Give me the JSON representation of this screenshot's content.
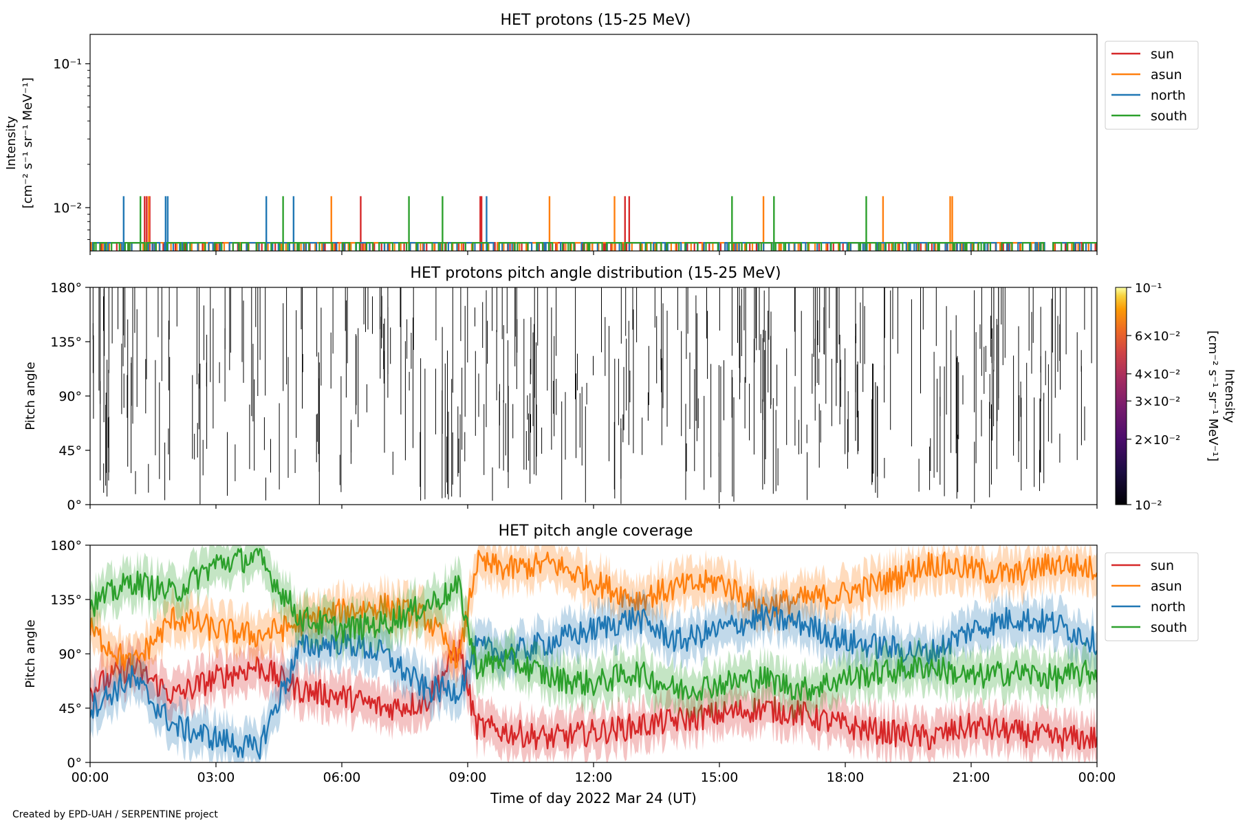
{
  "footer": "Created by EPD-UAH / SERPENTINE project",
  "chart_data": [
    {
      "id": "intensity",
      "type": "line",
      "title": "HET protons (15-25 MeV)",
      "ylabel_line1": "Intensity",
      "ylabel_line2": "[cm⁻² s⁻¹ sr⁻¹ MeV⁻¹]",
      "yscale": "log",
      "ylim": [
        0.005,
        0.16
      ],
      "yticks": [
        {
          "value": 0.1,
          "label": "10⁻¹"
        },
        {
          "value": 0.01,
          "label": "10⁻²"
        }
      ],
      "xlim_hours": [
        0,
        24
      ],
      "legend": "top-right outside",
      "series": [
        {
          "name": "sun",
          "color": "#d62728",
          "baseline": 0.0057,
          "spikes_hours": [
            1.3,
            1.35,
            1.42,
            6.45,
            9.3,
            9.33,
            12.75,
            12.85
          ],
          "spike_value": 0.012
        },
        {
          "name": "asun",
          "color": "#ff7f0e",
          "baseline": 0.0057,
          "spikes_hours": [
            1.4,
            5.75,
            10.95,
            12.5,
            16.05,
            18.9,
            20.5,
            20.55
          ],
          "spike_value": 0.012
        },
        {
          "name": "north",
          "color": "#1f77b4",
          "baseline": 0.0057,
          "spikes_hours": [
            0.8,
            1.8,
            1.85,
            4.2,
            4.85,
            9.45
          ],
          "spike_value": 0.012
        },
        {
          "name": "south",
          "color": "#2ca02c",
          "baseline": 0.0057,
          "spikes_hours": [
            1.2,
            4.6,
            7.6,
            8.4,
            15.3,
            16.3,
            18.5
          ],
          "spike_value": 0.012
        }
      ]
    },
    {
      "id": "pad",
      "type": "heatmap",
      "title": "HET protons pitch angle distribution (15-25 MeV)",
      "ylabel": "Pitch angle",
      "ylim_deg": [
        0,
        180
      ],
      "yticks": [
        "0°",
        "45°",
        "90°",
        "135°",
        "180°"
      ],
      "xlim_hours": [
        0,
        24
      ],
      "colormap": "inferno",
      "color_range": [
        0.01,
        0.1
      ],
      "colorbar_ticks": [
        {
          "value": 0.1,
          "label": "10⁻¹"
        },
        {
          "value": 0.06,
          "label": "6×10⁻²"
        },
        {
          "value": 0.04,
          "label": "4×10⁻²"
        },
        {
          "value": 0.03,
          "label": "3×10⁻²"
        },
        {
          "value": 0.02,
          "label": "2×10⁻²"
        },
        {
          "value": 0.01,
          "label": "10⁻²"
        }
      ],
      "colorbar_label_line1": "Intensity",
      "colorbar_label_line2": "[cm⁻² s⁻¹ sr⁻¹ MeV⁻¹]",
      "note": "sparse thin vertical streaks at the lowest intensity"
    },
    {
      "id": "coverage",
      "type": "line",
      "title": "HET pitch angle coverage",
      "ylabel": "Pitch angle",
      "ylim_deg": [
        0,
        180
      ],
      "yticks": [
        "0°",
        "45°",
        "90°",
        "135°",
        "180°"
      ],
      "xlabel": "Time of day 2022 Mar 24 (UT)",
      "xtick_labels": [
        "00:00",
        "03:00",
        "06:00",
        "09:00",
        "12:00",
        "15:00",
        "18:00",
        "21:00",
        "00:00"
      ],
      "xlim_hours": [
        0,
        24
      ],
      "legend": "top-right outside",
      "band_halfwidth_deg": 17,
      "series": [
        {
          "name": "sun",
          "color": "#d62728",
          "x_hours": [
            0,
            1,
            2,
            3,
            4,
            5,
            6,
            7,
            8,
            8.8,
            9.2,
            10,
            11,
            12,
            13,
            14,
            15,
            16,
            17,
            18,
            19,
            20,
            21,
            22,
            23,
            24
          ],
          "values": [
            60,
            80,
            55,
            70,
            80,
            60,
            55,
            45,
            50,
            95,
            30,
            25,
            20,
            25,
            30,
            35,
            40,
            45,
            40,
            30,
            25,
            20,
            30,
            25,
            20,
            20
          ]
        },
        {
          "name": "asun",
          "color": "#ff7f0e",
          "x_hours": [
            0,
            1,
            2,
            3,
            4,
            5,
            6,
            7,
            8,
            8.8,
            9.2,
            10,
            11,
            12,
            13,
            14,
            15,
            16,
            17,
            18,
            19,
            20,
            21,
            22,
            23,
            24
          ],
          "values": [
            110,
            80,
            120,
            110,
            105,
            115,
            125,
            130,
            120,
            85,
            165,
            160,
            165,
            150,
            135,
            145,
            150,
            130,
            135,
            140,
            150,
            165,
            160,
            155,
            165,
            160
          ]
        },
        {
          "name": "north",
          "color": "#1f77b4",
          "x_hours": [
            0,
            1,
            2,
            3,
            4,
            5,
            6,
            7,
            8,
            8.8,
            9.2,
            10,
            11,
            12,
            13,
            14,
            15,
            16,
            17,
            18,
            19,
            20,
            21,
            22,
            23,
            24
          ],
          "values": [
            45,
            70,
            30,
            20,
            10,
            95,
            100,
            90,
            60,
            60,
            95,
            90,
            100,
            110,
            120,
            100,
            110,
            120,
            115,
            100,
            95,
            90,
            110,
            120,
            115,
            100
          ]
        },
        {
          "name": "south",
          "color": "#2ca02c",
          "x_hours": [
            0,
            1,
            2,
            3,
            4,
            5,
            6,
            7,
            8,
            8.8,
            9.2,
            10,
            11,
            12,
            13,
            14,
            15,
            16,
            17,
            18,
            19,
            20,
            21,
            22,
            23,
            24
          ],
          "values": [
            130,
            150,
            140,
            165,
            170,
            120,
            110,
            115,
            130,
            145,
            80,
            85,
            70,
            65,
            75,
            60,
            65,
            70,
            60,
            70,
            75,
            80,
            70,
            75,
            70,
            75
          ]
        }
      ]
    }
  ]
}
